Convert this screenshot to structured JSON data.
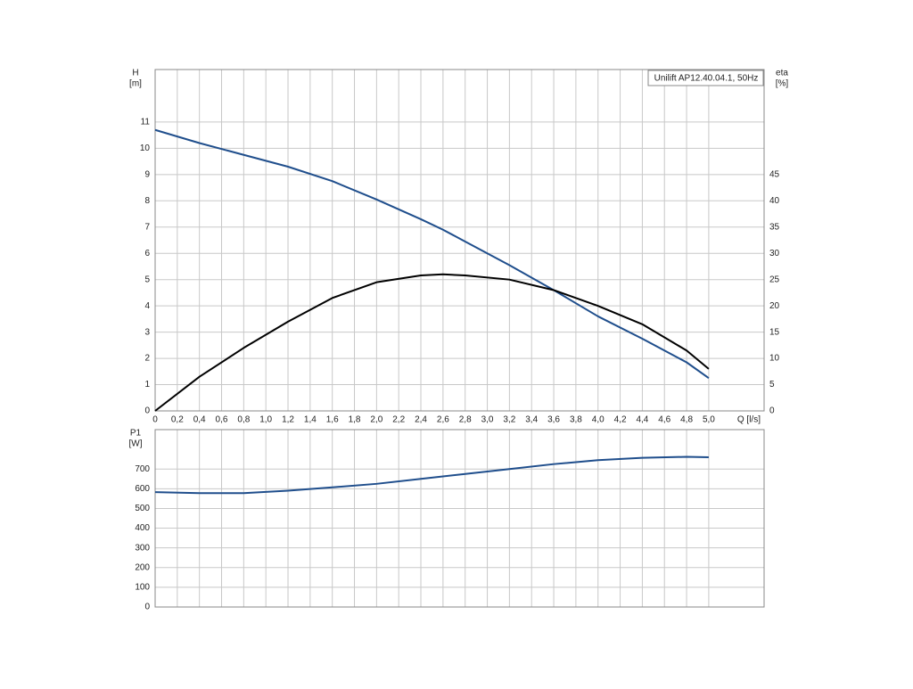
{
  "chart_data": [
    {
      "type": "line",
      "legend_text": "Unilift AP12.40.04.1, 50Hz",
      "y_label": [
        "H",
        "[m]"
      ],
      "y2_label": [
        "eta",
        "[%]"
      ],
      "x_label": "Q [l/s]",
      "x": [
        0,
        0.4,
        0.8,
        1.2,
        1.6,
        2.0,
        2.4,
        2.6,
        2.8,
        3.2,
        3.6,
        4.0,
        4.4,
        4.8,
        5.0
      ],
      "series": [
        {
          "name": "H",
          "color": "#1f4e8c",
          "values": [
            10.7,
            10.2,
            9.75,
            9.3,
            8.75,
            8.05,
            7.3,
            6.9,
            6.45,
            5.55,
            4.6,
            3.6,
            2.75,
            1.85,
            1.25
          ]
        },
        {
          "name": "eta",
          "color": "#000000",
          "axis": "y2",
          "values": [
            0,
            6.5,
            12,
            17,
            21.5,
            24.5,
            25.8,
            26,
            25.8,
            25,
            23,
            20,
            16.5,
            11.5,
            8
          ]
        }
      ],
      "xlim": [
        0,
        5.5
      ],
      "xticks": [
        0,
        {
          "value": 0.2,
          "label": "0,2"
        },
        {
          "value": 0.4,
          "label": "0,4"
        },
        {
          "value": 0.6,
          "label": "0,6"
        },
        {
          "value": 0.8,
          "label": "0,8"
        },
        {
          "value": 1.0,
          "label": "1,0"
        },
        {
          "value": 1.2,
          "label": "1,2"
        },
        {
          "value": 1.4,
          "label": "1,4"
        },
        {
          "value": 1.6,
          "label": "1,6"
        },
        {
          "value": 1.8,
          "label": "1,8"
        },
        {
          "value": 2.0,
          "label": "2,0"
        },
        {
          "value": 2.2,
          "label": "2,2"
        },
        {
          "value": 2.4,
          "label": "2,4"
        },
        {
          "value": 2.6,
          "label": "2,6"
        },
        {
          "value": 2.8,
          "label": "2,8"
        },
        {
          "value": 3.0,
          "label": "3,0"
        },
        {
          "value": 3.2,
          "label": "3,2"
        },
        {
          "value": 3.4,
          "label": "3,4"
        },
        {
          "value": 3.6,
          "label": "3,6"
        },
        {
          "value": 3.8,
          "label": "3,8"
        },
        {
          "value": 4.0,
          "label": "4,0"
        },
        {
          "value": 4.2,
          "label": "4,2"
        },
        {
          "value": 4.4,
          "label": "4,4"
        },
        {
          "value": 4.6,
          "label": "4,6"
        },
        {
          "value": 4.8,
          "label": "4,8"
        },
        {
          "value": 5.0,
          "label": "5,0"
        }
      ],
      "ylim": [
        0,
        13
      ],
      "yticks": [
        0,
        1,
        2,
        3,
        4,
        5,
        6,
        7,
        8,
        9,
        10,
        11
      ],
      "y2lim": [
        0,
        65
      ],
      "y2ticks": [
        0,
        5,
        10,
        15,
        20,
        25,
        30,
        35,
        40,
        45
      ],
      "grid": true
    },
    {
      "type": "line",
      "y_label": [
        "P1",
        "[W]"
      ],
      "x": [
        0,
        0.4,
        0.8,
        1.2,
        1.6,
        2.0,
        2.4,
        2.8,
        3.2,
        3.6,
        4.0,
        4.4,
        4.8,
        5.0
      ],
      "series": [
        {
          "name": "P1",
          "color": "#1f4e8c",
          "values": [
            583,
            578,
            578,
            590,
            607,
            625,
            650,
            675,
            700,
            725,
            745,
            757,
            762,
            760
          ]
        }
      ],
      "xlim": [
        0,
        5.5
      ],
      "ylim": [
        0,
        900
      ],
      "yticks": [
        0,
        100,
        200,
        300,
        400,
        500,
        600,
        700
      ],
      "grid": true
    }
  ]
}
